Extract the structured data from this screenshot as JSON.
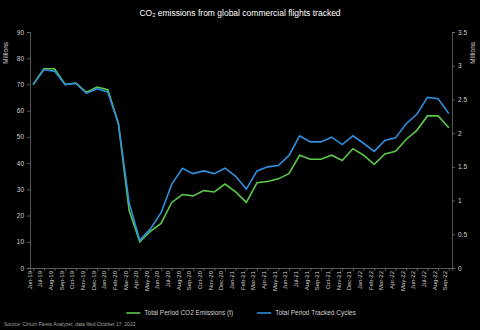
{
  "chart_data": {
    "type": "line",
    "title": "CO₂ emissions from global commercial flights tracked",
    "ylabel": "Millions",
    "y2label": "Millions",
    "source": "Source: Cirium Fleets Analyzer, data filed October 17, 2022",
    "categories": [
      "Jun-19",
      "Jul-19",
      "Aug-19",
      "Sep-19",
      "Oct-19",
      "Nov-19",
      "Dec-19",
      "Jan-20",
      "Feb-20",
      "Mar-20",
      "Apr-20",
      "May-20",
      "Jun-20",
      "Jul-20",
      "Aug-20",
      "Sep-20",
      "Oct-20",
      "Nov-20",
      "Dec-20",
      "Jan-21",
      "Feb-21",
      "Mar-21",
      "Apr-21",
      "May-21",
      "Jun-21",
      "Jul-21",
      "Aug-21",
      "Sep-21",
      "Oct-21",
      "Nov-21",
      "Dec-21",
      "Jan-22",
      "Feb-22",
      "Mar-22",
      "Apr-22",
      "May-22",
      "Jun-22",
      "Jul-22",
      "Aug-22",
      "Sep-22"
    ],
    "series": [
      {
        "name": "Total Period CO2 Emissions (t)",
        "color": "#5cc84a",
        "axis": "y",
        "values": [
          70,
          76,
          76,
          70,
          70.5,
          67,
          69,
          68,
          55,
          22,
          10,
          14,
          17,
          25,
          28,
          27.5,
          29.5,
          29,
          32,
          29,
          25,
          32.5,
          33,
          34,
          36,
          43,
          41.5,
          41.5,
          43,
          41,
          45.5,
          43,
          39.5,
          43.5,
          44.5,
          49,
          52.5,
          58,
          58,
          53.5
        ]
      },
      {
        "name": "Total Period Tracked Cycles",
        "color": "#2f8fdc",
        "axis": "y2",
        "values": [
          2.72,
          2.94,
          2.92,
          2.72,
          2.74,
          2.59,
          2.66,
          2.61,
          2.14,
          0.97,
          0.41,
          0.58,
          0.82,
          1.24,
          1.48,
          1.4,
          1.44,
          1.4,
          1.48,
          1.36,
          1.17,
          1.44,
          1.5,
          1.52,
          1.67,
          1.96,
          1.87,
          1.87,
          1.94,
          1.83,
          1.96,
          1.85,
          1.73,
          1.89,
          1.93,
          2.14,
          2.28,
          2.53,
          2.51,
          2.29
        ]
      }
    ],
    "ylim": [
      0,
      90
    ],
    "yticks": [
      0,
      10,
      20,
      30,
      40,
      50,
      60,
      70,
      80,
      90
    ],
    "y2lim": [
      0,
      3.5
    ],
    "y2ticks": [
      0,
      0.5,
      1,
      1.5,
      2,
      2.5,
      3,
      3.5
    ],
    "grid": false,
    "legend": "bottom"
  }
}
